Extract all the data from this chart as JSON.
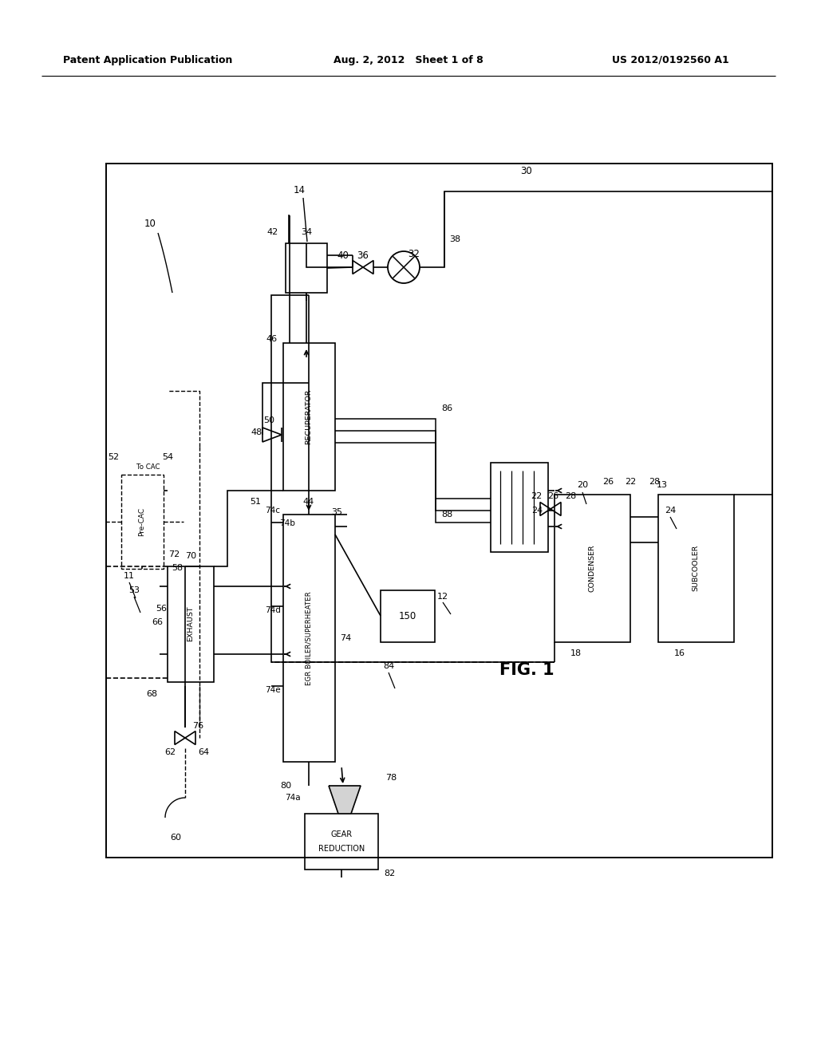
{
  "bg_color": "#ffffff",
  "header_left": "Patent Application Publication",
  "header_center": "Aug. 2, 2012   Sheet 1 of 8",
  "header_right": "US 2012/0192560 A1"
}
